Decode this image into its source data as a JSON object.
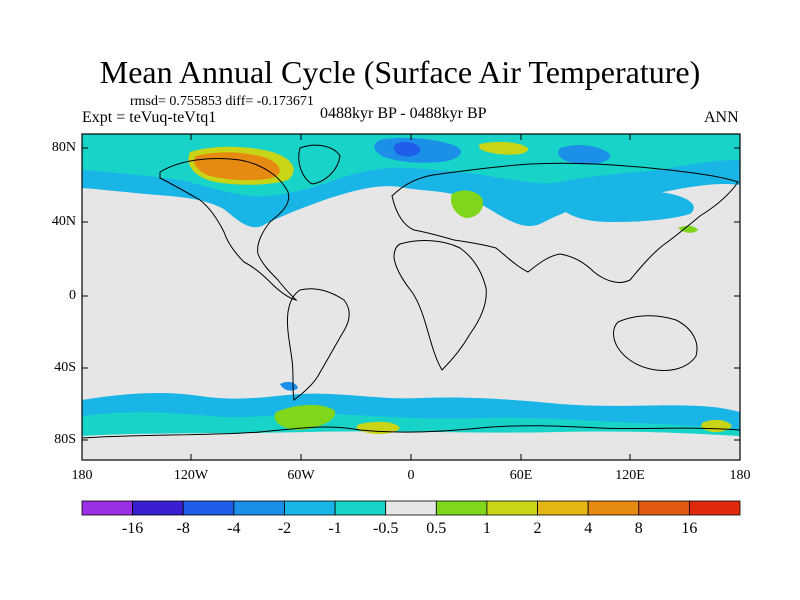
{
  "title": "Mean Annual Cycle (Surface Air Temperature)",
  "stats_text": "rmsd= 0.755853 diff= -0.173671",
  "experiment_text": "Expt = teVuq-teVtq1",
  "period_text": "0488kyr BP - 0488kyr BP",
  "season_text": "ANN",
  "lat_ticks": [
    "80N",
    "40N",
    "0",
    "40S",
    "80S"
  ],
  "lon_ticks": [
    "180",
    "120W",
    "60W",
    "0",
    "60E",
    "120E",
    "180"
  ],
  "colorbar": {
    "labels": [
      "-16",
      "-8",
      "-4",
      "-2",
      "-1",
      "-0.5",
      "0.5",
      "1",
      "2",
      "4",
      "8",
      "16"
    ],
    "colors": [
      "#9a2fe6",
      "#3a1fd0",
      "#1f5ee8",
      "#1c8fe8",
      "#19b5e6",
      "#17d3c8",
      "#e6e6e6",
      "#7fd61a",
      "#c8d416",
      "#e6b614",
      "#e68a12",
      "#e25a10",
      "#e02a0e"
    ]
  }
}
